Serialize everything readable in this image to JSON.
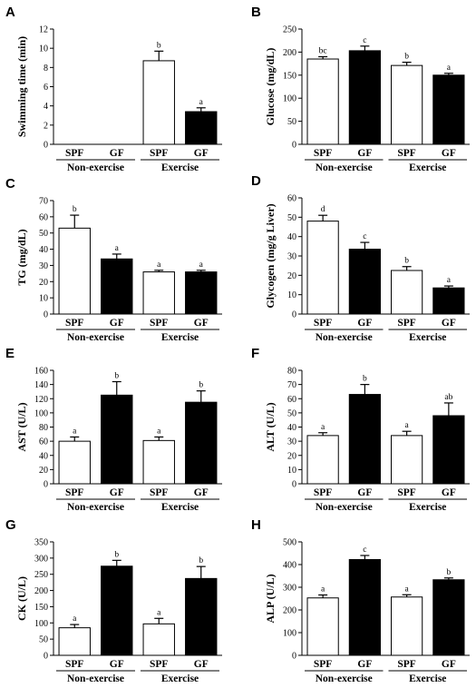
{
  "colors": {
    "spf": "#ffffff",
    "gf": "#000000",
    "stroke": "#000000"
  },
  "chart_data": [
    {
      "type": "bar",
      "panel": "A",
      "ylabel": "Swimming time (min)",
      "ylim": [
        0,
        12
      ],
      "yticks": [
        0,
        2,
        4,
        6,
        8,
        10,
        12
      ],
      "categories": [
        "SPF",
        "GF",
        "SPF",
        "GF"
      ],
      "groups": [
        "Non-exercise",
        "Exercise"
      ],
      "values": [
        null,
        null,
        8.7,
        3.4
      ],
      "errors": [
        null,
        null,
        1.0,
        0.4
      ],
      "labels": [
        "",
        "",
        "b",
        "a"
      ]
    },
    {
      "type": "bar",
      "panel": "B",
      "ylabel": "Glucose (mg/dL)",
      "ylim": [
        0,
        250
      ],
      "yticks": [
        0,
        50,
        100,
        150,
        200,
        250
      ],
      "categories": [
        "SPF",
        "GF",
        "SPF",
        "GF"
      ],
      "groups": [
        "Non-exercise",
        "Exercise"
      ],
      "values": [
        185,
        203,
        171,
        150
      ],
      "errors": [
        5,
        10,
        7,
        4
      ],
      "labels": [
        "bc",
        "c",
        "b",
        "a"
      ]
    },
    {
      "type": "bar",
      "panel": "C",
      "ylabel": "TG (mg/dL)",
      "ylim": [
        0,
        70
      ],
      "yticks": [
        0,
        10,
        20,
        30,
        40,
        50,
        60,
        70
      ],
      "categories": [
        "SPF",
        "GF",
        "SPF",
        "GF"
      ],
      "groups": [
        "Non-exercise",
        "Exercise"
      ],
      "values": [
        53,
        34,
        26,
        26
      ],
      "errors": [
        8,
        3,
        1,
        1
      ],
      "labels": [
        "b",
        "a",
        "a",
        "a"
      ]
    },
    {
      "type": "bar",
      "panel": "D",
      "ylabel": "Glycogen (mg/g Liver)",
      "ylim": [
        0,
        60
      ],
      "yticks": [
        0,
        10,
        20,
        30,
        40,
        50,
        60
      ],
      "categories": [
        "SPF",
        "GF",
        "SPF",
        "GF"
      ],
      "groups": [
        "Non-exercise",
        "Exercise"
      ],
      "values": [
        48,
        33.5,
        22.5,
        13.5
      ],
      "errors": [
        3,
        3.5,
        2,
        1
      ],
      "labels": [
        "d",
        "c",
        "b",
        "a"
      ]
    },
    {
      "type": "bar",
      "panel": "E",
      "ylabel": "AST (U/L)",
      "ylim": [
        0,
        160
      ],
      "yticks": [
        0,
        20,
        40,
        60,
        80,
        100,
        120,
        140,
        160
      ],
      "categories": [
        "SPF",
        "GF",
        "SPF",
        "GF"
      ],
      "groups": [
        "Non-exercise",
        "Exercise"
      ],
      "values": [
        60,
        125,
        61,
        115
      ],
      "errors": [
        6,
        19,
        5,
        16
      ],
      "labels": [
        "a",
        "b",
        "a",
        "b"
      ]
    },
    {
      "type": "bar",
      "panel": "F",
      "ylabel": "ALT (U/L)",
      "ylim": [
        0,
        80
      ],
      "yticks": [
        0,
        10,
        20,
        30,
        40,
        50,
        60,
        70,
        80
      ],
      "categories": [
        "SPF",
        "GF",
        "SPF",
        "GF"
      ],
      "groups": [
        "Non-exercise",
        "Exercise"
      ],
      "values": [
        34,
        63,
        34,
        48
      ],
      "errors": [
        2,
        7,
        3,
        9
      ],
      "labels": [
        "a",
        "b",
        "a",
        "ab"
      ]
    },
    {
      "type": "bar",
      "panel": "G",
      "ylabel": "CK (U/L)",
      "ylim": [
        0,
        350
      ],
      "yticks": [
        0,
        50,
        100,
        150,
        200,
        250,
        300,
        350
      ],
      "categories": [
        "SPF",
        "GF",
        "SPF",
        "GF"
      ],
      "groups": [
        "Non-exercise",
        "Exercise"
      ],
      "values": [
        85,
        275,
        97,
        237
      ],
      "errors": [
        10,
        18,
        17,
        37
      ],
      "labels": [
        "a",
        "b",
        "a",
        "b"
      ]
    },
    {
      "type": "bar",
      "panel": "H",
      "ylabel": "ALP (U/L)",
      "ylim": [
        0,
        500
      ],
      "yticks": [
        0,
        100,
        200,
        300,
        400,
        500
      ],
      "categories": [
        "SPF",
        "GF",
        "SPF",
        "GF"
      ],
      "groups": [
        "Non-exercise",
        "Exercise"
      ],
      "values": [
        253,
        422,
        257,
        333
      ],
      "errors": [
        13,
        18,
        10,
        8
      ],
      "labels": [
        "a",
        "c",
        "a",
        "b"
      ]
    }
  ]
}
